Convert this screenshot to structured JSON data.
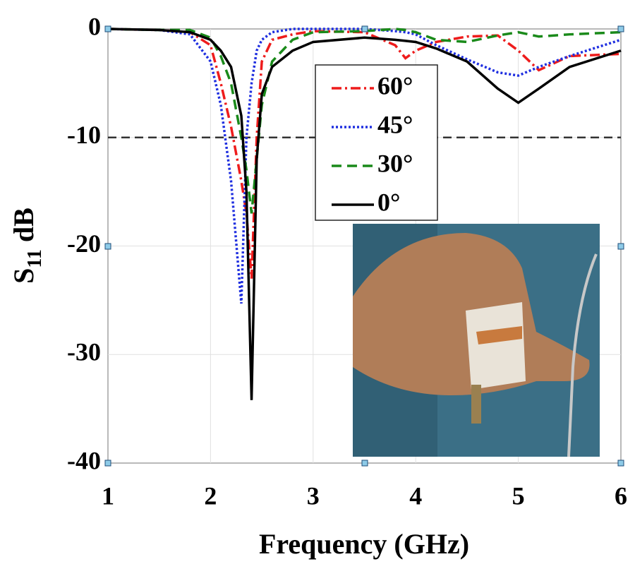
{
  "chart_data": {
    "type": "line",
    "xlabel": "Frequency (GHz)",
    "ylabel": [
      "S",
      "11",
      "dB"
    ],
    "x": [
      1,
      1.5,
      1.8,
      2,
      2.1,
      2.2,
      2.3,
      2.35,
      2.4,
      2.45,
      2.5,
      2.6,
      2.8,
      3,
      3.5,
      3.8,
      3.9,
      4,
      4.2,
      4.5,
      4.8,
      5,
      5.2,
      5.5,
      6
    ],
    "series": [
      {
        "name": "60°",
        "color": "#ee1c1c",
        "linestyle": "dashdot",
        "values": [
          0,
          -0.1,
          -0.3,
          -1.5,
          -5,
          -9,
          -14,
          -17,
          -23,
          -10,
          -3,
          -1,
          -0.5,
          -0.2,
          -0.3,
          -1.5,
          -2.7,
          -2,
          -1.2,
          -0.7,
          -0.6,
          -2,
          -3.8,
          -2.5,
          -2.3
        ]
      },
      {
        "name": "45°",
        "color": "#1f2fe0",
        "linestyle": "dotted",
        "values": [
          0,
          -0.1,
          -0.5,
          -3,
          -7,
          -14,
          -25.3,
          -10,
          -5,
          -2,
          -1,
          -0.3,
          0,
          0,
          0,
          -0.2,
          -0.3,
          -0.5,
          -1.5,
          -2.8,
          -4,
          -4.3,
          -3.5,
          -2.5,
          -1
        ]
      },
      {
        "name": "30°",
        "color": "#1a8a1a",
        "linestyle": "dashed",
        "values": [
          0,
          -0.1,
          -0.1,
          -0.8,
          -2.5,
          -5,
          -10,
          -13,
          -17,
          -12,
          -7,
          -3,
          -1,
          -0.3,
          -0.2,
          0,
          -0.1,
          -0.3,
          -1,
          -1.2,
          -0.6,
          -0.3,
          -0.7,
          -0.5,
          -0.3
        ]
      },
      {
        "name": "0°",
        "color": "#000000",
        "linestyle": "solid",
        "values": [
          0,
          -0.1,
          -0.3,
          -1,
          -2,
          -3.5,
          -8,
          -15,
          -34.2,
          -12,
          -6,
          -3.5,
          -2,
          -1.2,
          -0.8,
          -1,
          -1.1,
          -1.2,
          -1.8,
          -3,
          -5.5,
          -6.8,
          -5.5,
          -3.5,
          -2
        ]
      }
    ],
    "xlim": [
      1,
      6
    ],
    "xticks": [
      1,
      2,
      3,
      4,
      5,
      6
    ],
    "ylim": [
      -40,
      0
    ],
    "yticks": [
      -40,
      -30,
      -20,
      -10,
      0
    ],
    "hline": -10,
    "grid": true
  }
}
